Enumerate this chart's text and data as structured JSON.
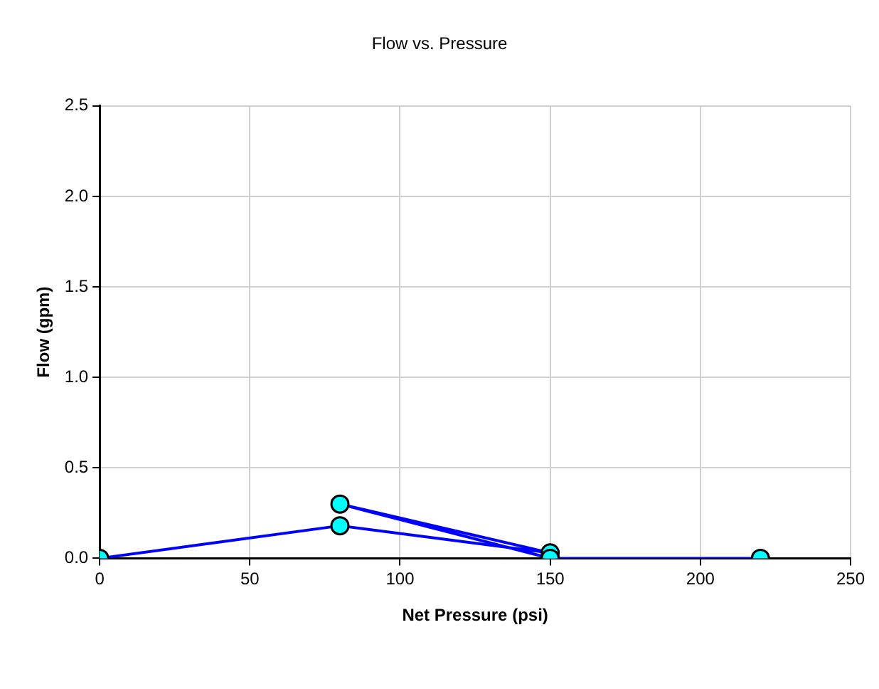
{
  "chart_data": {
    "type": "line",
    "title": "Flow vs. Pressure",
    "xlabel": "Net Pressure (psi)",
    "ylabel": "Flow (gpm)",
    "series": [
      {
        "color": "#0000ff",
        "x": [
          0,
          80,
          150,
          80,
          150,
          220
        ],
        "values": [
          0,
          0.18,
          0.03,
          0.3,
          0,
          0
        ]
      }
    ],
    "xlim": [
      0,
      250
    ],
    "xticks": [
      0,
      50,
      100,
      150,
      200,
      250
    ],
    "ylim": [
      0,
      2.5
    ],
    "yticks": [
      {
        "value": 0,
        "label": "0.0"
      },
      0.5,
      {
        "value": 1,
        "label": "1.0"
      },
      1.5,
      {
        "value": 2,
        "label": "2.0"
      },
      2.5
    ],
    "grid": true,
    "legend": false,
    "marker": "circle",
    "line_style": "solid"
  }
}
